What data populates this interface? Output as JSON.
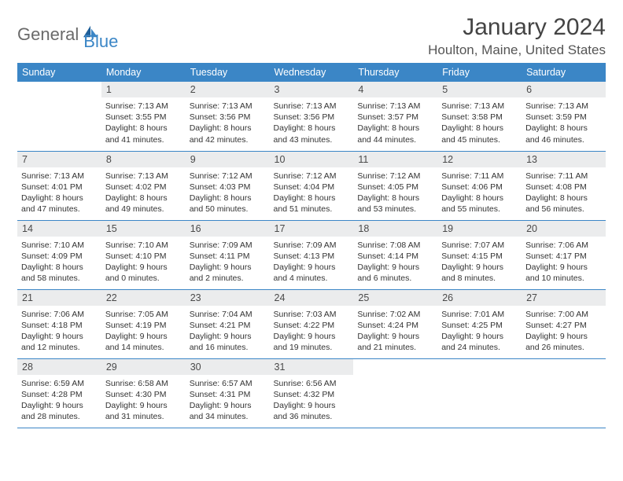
{
  "brand": {
    "word1": "General",
    "word2": "Blue"
  },
  "title": "January 2024",
  "location": "Houlton, Maine, United States",
  "colors": {
    "header_bg": "#3b86c6",
    "header_text": "#ffffff",
    "daynum_bg": "#ebeced",
    "row_border": "#3b86c6",
    "text": "#333333",
    "title_color": "#444444",
    "location_color": "#555555",
    "logo_gray": "#6a6a6a",
    "logo_blue": "#3b86c6",
    "background": "#ffffff"
  },
  "typography": {
    "title_fontsize": 30,
    "location_fontsize": 17,
    "header_fontsize": 12.5,
    "daynum_fontsize": 12.5,
    "cell_fontsize": 10.5,
    "logo_fontsize": 22
  },
  "weekdays": [
    "Sunday",
    "Monday",
    "Tuesday",
    "Wednesday",
    "Thursday",
    "Friday",
    "Saturday"
  ],
  "weeks": [
    [
      {
        "day": "",
        "sunrise": "",
        "sunset": "",
        "daylight": ""
      },
      {
        "day": "1",
        "sunrise": "Sunrise: 7:13 AM",
        "sunset": "Sunset: 3:55 PM",
        "daylight": "Daylight: 8 hours and 41 minutes."
      },
      {
        "day": "2",
        "sunrise": "Sunrise: 7:13 AM",
        "sunset": "Sunset: 3:56 PM",
        "daylight": "Daylight: 8 hours and 42 minutes."
      },
      {
        "day": "3",
        "sunrise": "Sunrise: 7:13 AM",
        "sunset": "Sunset: 3:56 PM",
        "daylight": "Daylight: 8 hours and 43 minutes."
      },
      {
        "day": "4",
        "sunrise": "Sunrise: 7:13 AM",
        "sunset": "Sunset: 3:57 PM",
        "daylight": "Daylight: 8 hours and 44 minutes."
      },
      {
        "day": "5",
        "sunrise": "Sunrise: 7:13 AM",
        "sunset": "Sunset: 3:58 PM",
        "daylight": "Daylight: 8 hours and 45 minutes."
      },
      {
        "day": "6",
        "sunrise": "Sunrise: 7:13 AM",
        "sunset": "Sunset: 3:59 PM",
        "daylight": "Daylight: 8 hours and 46 minutes."
      }
    ],
    [
      {
        "day": "7",
        "sunrise": "Sunrise: 7:13 AM",
        "sunset": "Sunset: 4:01 PM",
        "daylight": "Daylight: 8 hours and 47 minutes."
      },
      {
        "day": "8",
        "sunrise": "Sunrise: 7:13 AM",
        "sunset": "Sunset: 4:02 PM",
        "daylight": "Daylight: 8 hours and 49 minutes."
      },
      {
        "day": "9",
        "sunrise": "Sunrise: 7:12 AM",
        "sunset": "Sunset: 4:03 PM",
        "daylight": "Daylight: 8 hours and 50 minutes."
      },
      {
        "day": "10",
        "sunrise": "Sunrise: 7:12 AM",
        "sunset": "Sunset: 4:04 PM",
        "daylight": "Daylight: 8 hours and 51 minutes."
      },
      {
        "day": "11",
        "sunrise": "Sunrise: 7:12 AM",
        "sunset": "Sunset: 4:05 PM",
        "daylight": "Daylight: 8 hours and 53 minutes."
      },
      {
        "day": "12",
        "sunrise": "Sunrise: 7:11 AM",
        "sunset": "Sunset: 4:06 PM",
        "daylight": "Daylight: 8 hours and 55 minutes."
      },
      {
        "day": "13",
        "sunrise": "Sunrise: 7:11 AM",
        "sunset": "Sunset: 4:08 PM",
        "daylight": "Daylight: 8 hours and 56 minutes."
      }
    ],
    [
      {
        "day": "14",
        "sunrise": "Sunrise: 7:10 AM",
        "sunset": "Sunset: 4:09 PM",
        "daylight": "Daylight: 8 hours and 58 minutes."
      },
      {
        "day": "15",
        "sunrise": "Sunrise: 7:10 AM",
        "sunset": "Sunset: 4:10 PM",
        "daylight": "Daylight: 9 hours and 0 minutes."
      },
      {
        "day": "16",
        "sunrise": "Sunrise: 7:09 AM",
        "sunset": "Sunset: 4:11 PM",
        "daylight": "Daylight: 9 hours and 2 minutes."
      },
      {
        "day": "17",
        "sunrise": "Sunrise: 7:09 AM",
        "sunset": "Sunset: 4:13 PM",
        "daylight": "Daylight: 9 hours and 4 minutes."
      },
      {
        "day": "18",
        "sunrise": "Sunrise: 7:08 AM",
        "sunset": "Sunset: 4:14 PM",
        "daylight": "Daylight: 9 hours and 6 minutes."
      },
      {
        "day": "19",
        "sunrise": "Sunrise: 7:07 AM",
        "sunset": "Sunset: 4:15 PM",
        "daylight": "Daylight: 9 hours and 8 minutes."
      },
      {
        "day": "20",
        "sunrise": "Sunrise: 7:06 AM",
        "sunset": "Sunset: 4:17 PM",
        "daylight": "Daylight: 9 hours and 10 minutes."
      }
    ],
    [
      {
        "day": "21",
        "sunrise": "Sunrise: 7:06 AM",
        "sunset": "Sunset: 4:18 PM",
        "daylight": "Daylight: 9 hours and 12 minutes."
      },
      {
        "day": "22",
        "sunrise": "Sunrise: 7:05 AM",
        "sunset": "Sunset: 4:19 PM",
        "daylight": "Daylight: 9 hours and 14 minutes."
      },
      {
        "day": "23",
        "sunrise": "Sunrise: 7:04 AM",
        "sunset": "Sunset: 4:21 PM",
        "daylight": "Daylight: 9 hours and 16 minutes."
      },
      {
        "day": "24",
        "sunrise": "Sunrise: 7:03 AM",
        "sunset": "Sunset: 4:22 PM",
        "daylight": "Daylight: 9 hours and 19 minutes."
      },
      {
        "day": "25",
        "sunrise": "Sunrise: 7:02 AM",
        "sunset": "Sunset: 4:24 PM",
        "daylight": "Daylight: 9 hours and 21 minutes."
      },
      {
        "day": "26",
        "sunrise": "Sunrise: 7:01 AM",
        "sunset": "Sunset: 4:25 PM",
        "daylight": "Daylight: 9 hours and 24 minutes."
      },
      {
        "day": "27",
        "sunrise": "Sunrise: 7:00 AM",
        "sunset": "Sunset: 4:27 PM",
        "daylight": "Daylight: 9 hours and 26 minutes."
      }
    ],
    [
      {
        "day": "28",
        "sunrise": "Sunrise: 6:59 AM",
        "sunset": "Sunset: 4:28 PM",
        "daylight": "Daylight: 9 hours and 28 minutes."
      },
      {
        "day": "29",
        "sunrise": "Sunrise: 6:58 AM",
        "sunset": "Sunset: 4:30 PM",
        "daylight": "Daylight: 9 hours and 31 minutes."
      },
      {
        "day": "30",
        "sunrise": "Sunrise: 6:57 AM",
        "sunset": "Sunset: 4:31 PM",
        "daylight": "Daylight: 9 hours and 34 minutes."
      },
      {
        "day": "31",
        "sunrise": "Sunrise: 6:56 AM",
        "sunset": "Sunset: 4:32 PM",
        "daylight": "Daylight: 9 hours and 36 minutes."
      },
      {
        "day": "",
        "sunrise": "",
        "sunset": "",
        "daylight": ""
      },
      {
        "day": "",
        "sunrise": "",
        "sunset": "",
        "daylight": ""
      },
      {
        "day": "",
        "sunrise": "",
        "sunset": "",
        "daylight": ""
      }
    ]
  ]
}
